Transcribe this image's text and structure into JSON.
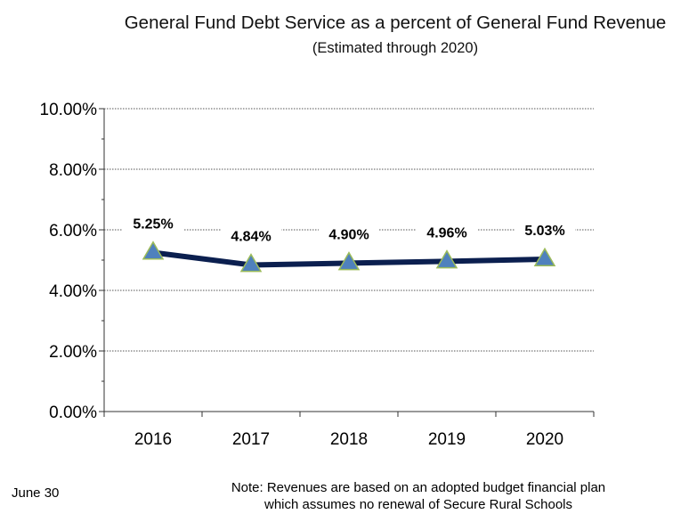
{
  "title": {
    "main": "General Fund Debt Service as a percent of General Fund Revenue",
    "sub": "(Estimated through 2020)"
  },
  "chart_data": {
    "type": "line",
    "title": "General Fund Debt Service as a percent of General Fund Revenue (Estimated through 2020)",
    "categories": [
      "2016",
      "2017",
      "2018",
      "2019",
      "2020"
    ],
    "series": [
      {
        "values": [
          5.25,
          4.84,
          4.9,
          4.96,
          5.03
        ],
        "data_labels": [
          "5.25%",
          "4.84%",
          "4.90%",
          "4.96%",
          "5.03%"
        ],
        "line_color": "#0b1f4f",
        "marker": "triangle",
        "marker_color": "#4f81bd",
        "marker_edge_color": "#9bbb59"
      }
    ],
    "ylim": [
      0,
      10
    ],
    "y_ticks": [
      0,
      2,
      4,
      6,
      8,
      10
    ],
    "y_tick_labels": [
      "0.00%",
      "2.00%",
      "4.00%",
      "6.00%",
      "8.00%",
      "10.00%"
    ],
    "grid": "horizontal dotted",
    "legend": "none"
  },
  "footer": {
    "left": "June 30",
    "note_line1": "Note: Revenues are based on an adopted budget financial  plan",
    "note_line2": "which  assumes no renewal of Secure Rural Schools"
  }
}
